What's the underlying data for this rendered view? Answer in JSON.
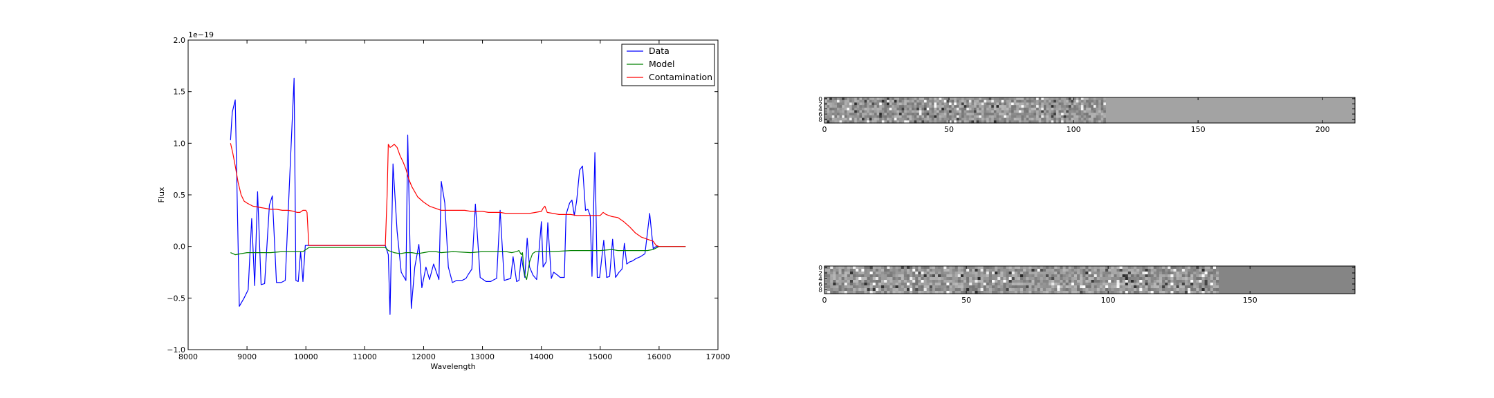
{
  "chart_data": [
    {
      "type": "line",
      "xlabel": "Wavelength",
      "ylabel": "Flux",
      "offset_label": "1e−19",
      "xlim": [
        8000,
        17000
      ],
      "ylim": [
        -1.0,
        2.0
      ],
      "xticks": [
        8000,
        9000,
        10000,
        11000,
        12000,
        13000,
        14000,
        15000,
        16000,
        17000
      ],
      "yticks": [
        -1.0,
        -0.5,
        0.0,
        0.5,
        1.0,
        1.5,
        2.0
      ],
      "xtick_labels": [
        "8000",
        "9000",
        "10000",
        "11000",
        "12000",
        "13000",
        "14000",
        "15000",
        "16000",
        "17000"
      ],
      "ytick_labels": [
        "−1.0",
        "−0.5",
        "0.0",
        "0.5",
        "1.0",
        "1.5",
        "2.0"
      ],
      "legend": {
        "placement": "top-right",
        "entries": [
          "Data",
          "Model",
          "Contamination"
        ]
      },
      "series": [
        {
          "name": "Data",
          "color": "#0000ff",
          "x": [
            8720,
            8750,
            8800,
            8870,
            8950,
            9020,
            9080,
            9130,
            9180,
            9240,
            9300,
            9380,
            9430,
            9500,
            9580,
            9650,
            9720,
            9800,
            9830,
            9870,
            9910,
            9950,
            9990,
            10020,
            10050,
            11350,
            11400,
            11430,
            11480,
            11550,
            11620,
            11700,
            11730,
            11790,
            11850,
            11920,
            11970,
            12040,
            12100,
            12170,
            12260,
            12300,
            12360,
            12420,
            12490,
            12560,
            12650,
            12720,
            12760,
            12820,
            12880,
            12960,
            13060,
            13140,
            13200,
            13240,
            13300,
            13370,
            13420,
            13480,
            13520,
            13580,
            13620,
            13660,
            13720,
            13760,
            13800,
            13860,
            13920,
            14000,
            14030,
            14080,
            14110,
            14170,
            14210,
            14280,
            14320,
            14390,
            14420,
            14480,
            14520,
            14560,
            14600,
            14650,
            14700,
            14750,
            14790,
            14830,
            14860,
            14910,
            14950,
            14990,
            15060,
            15110,
            15160,
            15210,
            15260,
            15320,
            15370,
            15410,
            15450,
            15500,
            15550,
            15600,
            15680,
            15760,
            15840,
            15900,
            15950,
            15980
          ],
          "y": [
            1.03,
            1.3,
            1.42,
            -0.58,
            -0.5,
            -0.42,
            0.27,
            -0.38,
            0.53,
            -0.37,
            -0.36,
            0.4,
            0.49,
            -0.35,
            -0.35,
            -0.33,
            0.6,
            1.63,
            -0.33,
            -0.34,
            -0.05,
            -0.34,
            0.01,
            0.01,
            0.01,
            0.01,
            -0.08,
            -0.66,
            0.8,
            0.15,
            -0.25,
            -0.33,
            1.08,
            -0.6,
            -0.2,
            0.02,
            -0.4,
            -0.2,
            -0.32,
            -0.17,
            -0.32,
            0.63,
            0.42,
            -0.2,
            -0.35,
            -0.33,
            -0.33,
            -0.31,
            -0.27,
            -0.22,
            0.41,
            -0.3,
            -0.34,
            -0.34,
            -0.32,
            -0.31,
            0.35,
            -0.33,
            -0.32,
            -0.31,
            -0.1,
            -0.34,
            -0.33,
            -0.1,
            -0.3,
            0.08,
            -0.2,
            -0.28,
            -0.32,
            0.24,
            -0.2,
            -0.15,
            0.23,
            -0.31,
            -0.25,
            -0.28,
            -0.3,
            -0.3,
            0.31,
            0.42,
            0.45,
            0.3,
            0.44,
            0.74,
            0.78,
            0.35,
            0.36,
            0.3,
            -0.29,
            0.91,
            -0.3,
            -0.3,
            0.06,
            -0.3,
            -0.29,
            0.07,
            -0.3,
            -0.25,
            -0.22,
            0.03,
            -0.17,
            -0.15,
            -0.14,
            -0.12,
            -0.1,
            -0.07,
            0.32,
            -0.02,
            0.0,
            0.0
          ],
          "x_tail": [
            15980,
            16450
          ],
          "y_tail": [
            0.0,
            0.0
          ]
        },
        {
          "name": "Model",
          "color": "#008000",
          "x": [
            8720,
            8800,
            8900,
            9000,
            9200,
            9400,
            9600,
            9800,
            9950,
            10050,
            11350,
            11400,
            11450,
            11500,
            11600,
            11700,
            11800,
            11900,
            12000,
            12100,
            12200,
            12300,
            12500,
            12800,
            13000,
            13200,
            13400,
            13500,
            13580,
            13620,
            13660,
            13680,
            13700,
            13720,
            13750,
            13780,
            13800,
            13850,
            13900,
            14000,
            14200,
            14500,
            14800,
            15000,
            15200,
            15300,
            15500,
            15700,
            15800,
            15900,
            16000,
            16450
          ],
          "y": [
            -0.06,
            -0.08,
            -0.07,
            -0.06,
            -0.06,
            -0.06,
            -0.05,
            -0.05,
            -0.05,
            -0.01,
            -0.01,
            -0.04,
            -0.05,
            -0.06,
            -0.07,
            -0.06,
            -0.06,
            -0.07,
            -0.06,
            -0.05,
            -0.05,
            -0.06,
            -0.05,
            -0.06,
            -0.05,
            -0.05,
            -0.05,
            -0.06,
            -0.05,
            -0.04,
            -0.08,
            -0.06,
            -0.2,
            -0.28,
            -0.32,
            -0.22,
            -0.15,
            -0.07,
            -0.05,
            -0.05,
            -0.05,
            -0.04,
            -0.04,
            -0.04,
            -0.03,
            -0.04,
            -0.04,
            -0.04,
            -0.04,
            -0.03,
            0.0,
            0.0
          ]
        },
        {
          "name": "Contamination",
          "color": "#ff0000",
          "x": [
            8720,
            8760,
            8800,
            8850,
            8900,
            8950,
            9000,
            9100,
            9200,
            9300,
            9400,
            9500,
            9600,
            9700,
            9800,
            9850,
            9900,
            9950,
            10000,
            10020,
            10050,
            11350,
            11380,
            11400,
            11430,
            11460,
            11500,
            11550,
            11600,
            11650,
            11700,
            11750,
            11800,
            11900,
            12000,
            12100,
            12200,
            12300,
            12400,
            12500,
            12600,
            12700,
            12800,
            12900,
            13000,
            13100,
            13200,
            13300,
            13400,
            13500,
            13600,
            13700,
            13800,
            13900,
            14000,
            14030,
            14060,
            14100,
            14200,
            14300,
            14400,
            14500,
            14600,
            14700,
            14800,
            14900,
            15000,
            15050,
            15100,
            15200,
            15300,
            15400,
            15500,
            15600,
            15700,
            15800,
            15850,
            15900,
            15950,
            16000,
            16450
          ],
          "y": [
            1.0,
            0.9,
            0.78,
            0.62,
            0.5,
            0.44,
            0.42,
            0.39,
            0.38,
            0.37,
            0.36,
            0.36,
            0.35,
            0.35,
            0.34,
            0.33,
            0.33,
            0.35,
            0.35,
            0.33,
            0.01,
            0.01,
            0.5,
            0.99,
            0.96,
            0.97,
            0.99,
            0.96,
            0.88,
            0.82,
            0.75,
            0.65,
            0.58,
            0.48,
            0.43,
            0.39,
            0.37,
            0.35,
            0.35,
            0.35,
            0.35,
            0.35,
            0.34,
            0.34,
            0.34,
            0.33,
            0.33,
            0.33,
            0.32,
            0.32,
            0.32,
            0.32,
            0.32,
            0.33,
            0.34,
            0.37,
            0.39,
            0.33,
            0.32,
            0.31,
            0.31,
            0.31,
            0.3,
            0.3,
            0.3,
            0.3,
            0.3,
            0.33,
            0.31,
            0.29,
            0.28,
            0.24,
            0.19,
            0.13,
            0.09,
            0.07,
            0.06,
            0.05,
            0.01,
            0.0,
            0.0
          ]
        }
      ]
    },
    {
      "type": "heatmap",
      "xlim": [
        0,
        213
      ],
      "xticks": [
        0,
        50,
        100,
        150,
        200
      ],
      "xtick_labels": [
        "0",
        "50",
        "100",
        "150",
        "200"
      ],
      "yticks": [
        0,
        2,
        4,
        6,
        8
      ],
      "ytick_labels": [
        "0",
        "2",
        "4",
        "6",
        "8"
      ],
      "data_columns": 113,
      "rows": 10,
      "fill_value_color": "#a3a3a3",
      "colormap": "gray"
    },
    {
      "type": "heatmap",
      "xlim": [
        0,
        187
      ],
      "xticks": [
        0,
        50,
        100,
        150
      ],
      "xtick_labels": [
        "0",
        "50",
        "100",
        "150"
      ],
      "yticks": [
        0,
        2,
        4,
        6,
        8
      ],
      "ytick_labels": [
        "0",
        "2",
        "4",
        "6",
        "8"
      ],
      "data_columns": 139,
      "rows": 10,
      "fill_value_color": "#858585",
      "colormap": "gray"
    }
  ]
}
